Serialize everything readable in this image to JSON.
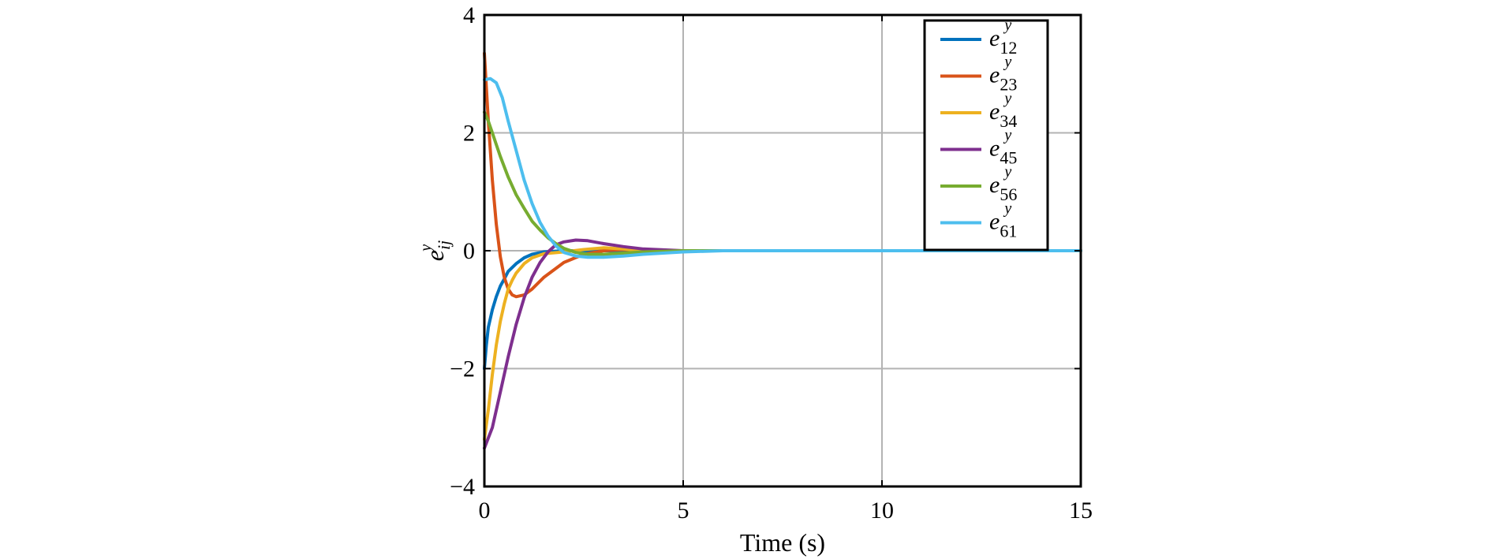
{
  "chart_data": {
    "type": "line",
    "xlabel": "Time (s)",
    "ylabel_base": "e",
    "ylabel_sub": "ij",
    "ylabel_sup": "y",
    "xlim": [
      0,
      15
    ],
    "ylim": [
      -4,
      4
    ],
    "xticks": [
      0,
      5,
      10,
      15
    ],
    "yticks": [
      -4,
      -2,
      0,
      2,
      4
    ],
    "ytick_labels": [
      "−4",
      "−2",
      "0",
      "2",
      "4"
    ],
    "grid": true,
    "legend_position": "top-right",
    "series": [
      {
        "name_base": "e",
        "name_sub": "12",
        "name_sup": "y",
        "color": "#0072BD",
        "x": [
          0,
          0.05,
          0.1,
          0.2,
          0.3,
          0.4,
          0.5,
          0.6,
          0.8,
          1.0,
          1.2,
          1.5,
          2.0,
          2.5,
          3.0,
          4.0,
          6.0,
          15
        ],
        "y": [
          -2.0,
          -1.6,
          -1.3,
          -1.0,
          -0.78,
          -0.6,
          -0.48,
          -0.35,
          -0.22,
          -0.12,
          -0.06,
          -0.02,
          0.0,
          0.0,
          0.0,
          0.0,
          0.0,
          0.0
        ]
      },
      {
        "name_base": "e",
        "name_sub": "23",
        "name_sup": "y",
        "color": "#D95319",
        "x": [
          0,
          0.1,
          0.2,
          0.3,
          0.4,
          0.5,
          0.6,
          0.7,
          0.8,
          1.0,
          1.2,
          1.5,
          2.0,
          2.5,
          3.0,
          3.5,
          4.0,
          5.0,
          6.0,
          15
        ],
        "y": [
          3.35,
          2.2,
          1.2,
          0.45,
          -0.1,
          -0.45,
          -0.65,
          -0.75,
          -0.78,
          -0.75,
          -0.65,
          -0.45,
          -0.2,
          -0.06,
          0.0,
          0.02,
          0.0,
          0.0,
          0.0,
          0.0
        ]
      },
      {
        "name_base": "e",
        "name_sub": "34",
        "name_sup": "y",
        "color": "#EDB120",
        "x": [
          0,
          0.1,
          0.2,
          0.3,
          0.4,
          0.5,
          0.6,
          0.7,
          0.8,
          1.0,
          1.2,
          1.5,
          2.0,
          2.5,
          3.0,
          3.5,
          4.0,
          5.0,
          15
        ],
        "y": [
          -3.2,
          -2.7,
          -2.1,
          -1.6,
          -1.2,
          -0.9,
          -0.65,
          -0.5,
          -0.38,
          -0.22,
          -0.12,
          -0.05,
          -0.02,
          0.02,
          0.05,
          0.03,
          0.0,
          0.0,
          0.0
        ]
      },
      {
        "name_base": "e",
        "name_sub": "45",
        "name_sup": "y",
        "color": "#7E2F8E",
        "x": [
          0,
          0.2,
          0.4,
          0.6,
          0.8,
          1.0,
          1.2,
          1.4,
          1.6,
          1.8,
          2.0,
          2.3,
          2.6,
          3.0,
          3.5,
          4.0,
          5.0,
          6.0,
          15
        ],
        "y": [
          -3.35,
          -3.0,
          -2.4,
          -1.8,
          -1.25,
          -0.8,
          -0.45,
          -0.2,
          -0.02,
          0.1,
          0.15,
          0.18,
          0.17,
          0.12,
          0.07,
          0.03,
          0.0,
          0.0,
          0.0
        ]
      },
      {
        "name_base": "e",
        "name_sub": "56",
        "name_sup": "y",
        "color": "#77AC30",
        "x": [
          0,
          0.1,
          0.2,
          0.3,
          0.4,
          0.6,
          0.8,
          1.0,
          1.2,
          1.4,
          1.6,
          1.8,
          2.0,
          2.3,
          2.6,
          3.0,
          3.5,
          4.0,
          5.0,
          15
        ],
        "y": [
          2.35,
          2.2,
          2.0,
          1.8,
          1.6,
          1.25,
          0.95,
          0.72,
          0.5,
          0.35,
          0.22,
          0.12,
          0.04,
          -0.03,
          -0.06,
          -0.06,
          -0.04,
          -0.02,
          0.0,
          0.0
        ]
      },
      {
        "name_base": "e",
        "name_sub": "61",
        "name_sup": "y",
        "color": "#4DBEEE",
        "x": [
          0,
          0.15,
          0.3,
          0.45,
          0.6,
          0.8,
          1.0,
          1.2,
          1.4,
          1.6,
          1.8,
          2.0,
          2.3,
          2.6,
          3.0,
          3.5,
          4.0,
          5.0,
          6.0,
          15
        ],
        "y": [
          2.9,
          2.92,
          2.85,
          2.6,
          2.2,
          1.7,
          1.2,
          0.8,
          0.48,
          0.25,
          0.08,
          -0.03,
          -0.09,
          -0.11,
          -0.11,
          -0.09,
          -0.06,
          -0.02,
          0.0,
          0.0
        ]
      }
    ]
  }
}
